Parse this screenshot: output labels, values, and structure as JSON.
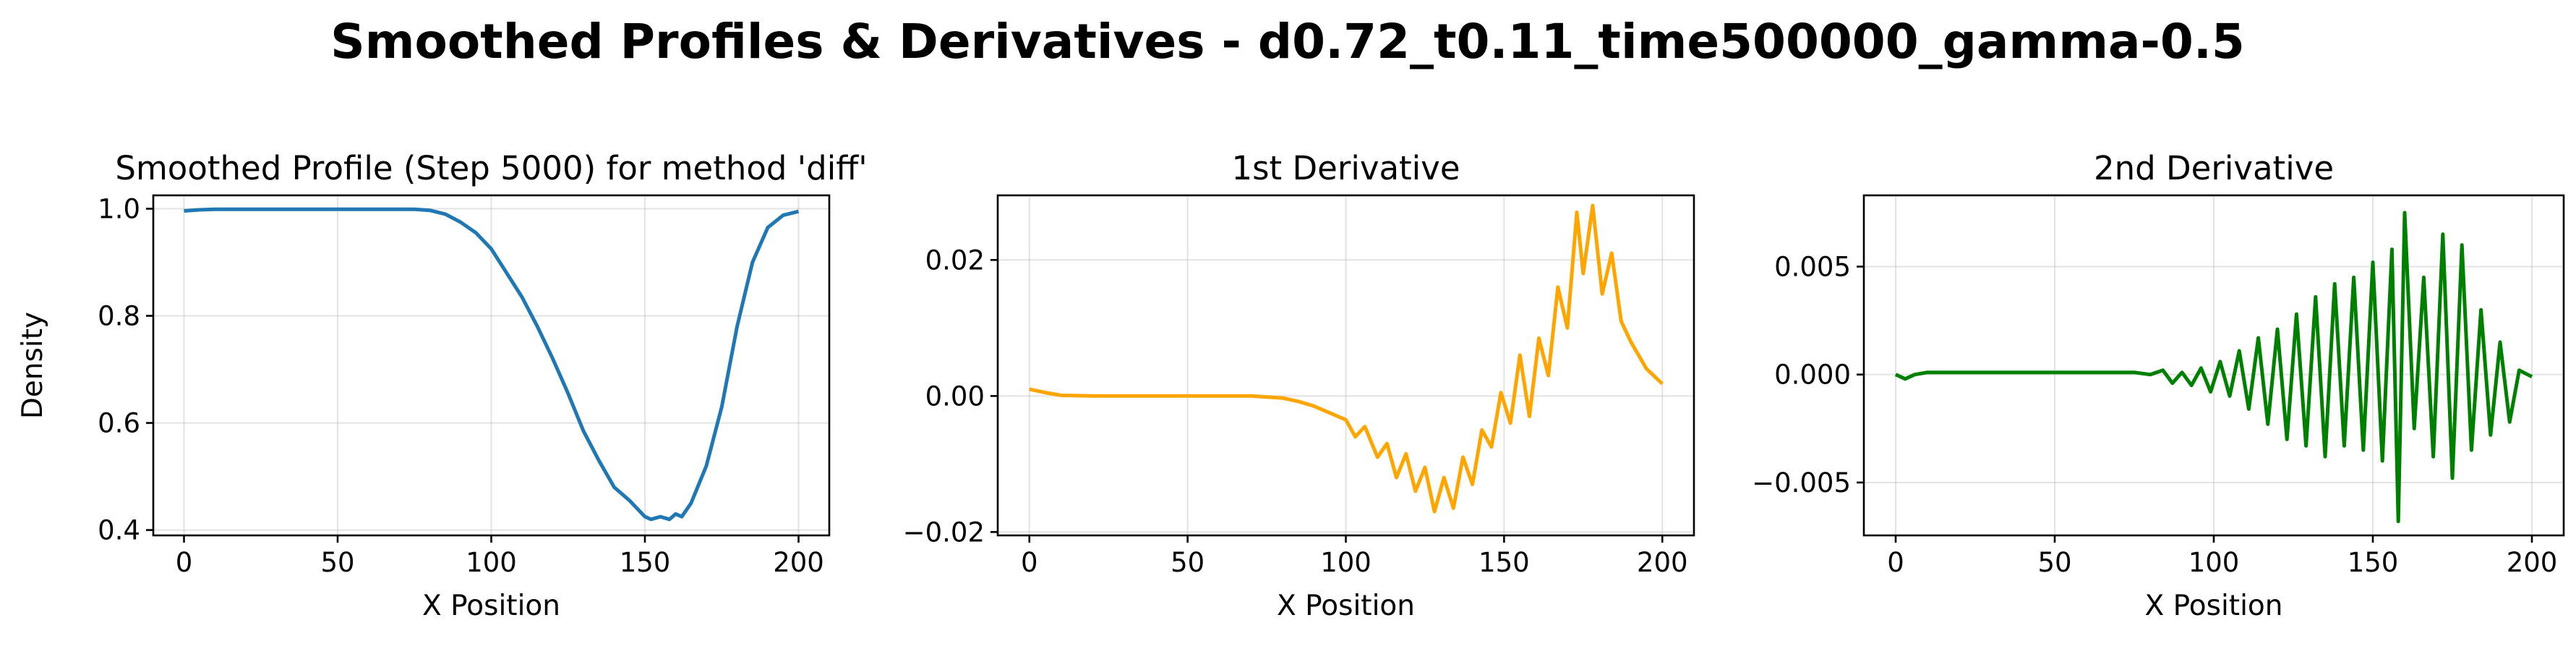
{
  "suptitle": "Smoothed Profiles & Derivatives - d0.72_t0.11_time500000_gamma-0.5",
  "chart_data": [
    {
      "type": "line",
      "title": "Smoothed Profile (Step 5000) for method 'diff'",
      "xlabel": "X Position",
      "ylabel": "Density",
      "xlim": [
        -10,
        210
      ],
      "ylim": [
        0.39,
        1.025
      ],
      "xticks": [
        0,
        50,
        100,
        150,
        200
      ],
      "xtick_labels": [
        "0",
        "50",
        "100",
        "150",
        "200"
      ],
      "yticks": [
        0.4,
        0.6,
        0.8,
        1.0
      ],
      "ytick_labels": [
        "0.4",
        "0.6",
        "0.8",
        "1.0"
      ],
      "grid": true,
      "color": "#1f77b4",
      "series": [
        {
          "x": [
            0,
            5,
            10,
            20,
            30,
            40,
            50,
            60,
            70,
            75,
            80,
            85,
            90,
            95,
            100,
            105,
            110,
            115,
            120,
            125,
            130,
            135,
            140,
            145,
            150,
            152,
            155,
            158,
            160,
            162,
            165,
            170,
            175,
            180,
            185,
            190,
            195,
            200
          ],
          "y": [
            0.996,
            0.998,
            0.999,
            0.999,
            0.999,
            0.999,
            0.999,
            0.999,
            0.999,
            0.999,
            0.997,
            0.99,
            0.975,
            0.955,
            0.925,
            0.88,
            0.835,
            0.78,
            0.72,
            0.655,
            0.585,
            0.53,
            0.48,
            0.455,
            0.425,
            0.42,
            0.425,
            0.42,
            0.43,
            0.425,
            0.45,
            0.52,
            0.63,
            0.78,
            0.9,
            0.965,
            0.988,
            0.995
          ]
        }
      ]
    },
    {
      "type": "line",
      "title": "1st Derivative",
      "xlabel": "X Position",
      "ylabel": "",
      "xlim": [
        -10,
        210
      ],
      "ylim": [
        -0.0205,
        0.0295
      ],
      "xticks": [
        0,
        50,
        100,
        150,
        200
      ],
      "xtick_labels": [
        "0",
        "50",
        "100",
        "150",
        "200"
      ],
      "yticks": [
        -0.02,
        0.0,
        0.02
      ],
      "ytick_labels": [
        "−0.02",
        "0.00",
        "0.02"
      ],
      "grid": true,
      "color": "#ffa500",
      "series": [
        {
          "x": [
            0,
            5,
            10,
            20,
            40,
            60,
            70,
            80,
            85,
            90,
            95,
            100,
            103,
            106,
            110,
            113,
            116,
            119,
            122,
            125,
            128,
            131,
            134,
            137,
            140,
            143,
            146,
            149,
            152,
            155,
            158,
            161,
            164,
            167,
            170,
            173,
            175,
            178,
            181,
            184,
            187,
            190,
            195,
            200
          ],
          "y": [
            0.001,
            0.0005,
            0.0001,
            0.0,
            0.0,
            0.0,
            0.0,
            -0.0003,
            -0.0008,
            -0.0015,
            -0.0025,
            -0.0035,
            -0.006,
            -0.0045,
            -0.009,
            -0.007,
            -0.012,
            -0.0085,
            -0.014,
            -0.0105,
            -0.017,
            -0.012,
            -0.0165,
            -0.009,
            -0.013,
            -0.005,
            -0.0075,
            0.0005,
            -0.004,
            0.006,
            -0.003,
            0.0085,
            0.003,
            0.016,
            0.01,
            0.027,
            0.018,
            0.028,
            0.015,
            0.021,
            0.011,
            0.008,
            0.004,
            0.0018
          ]
        }
      ]
    },
    {
      "type": "line",
      "title": "2nd Derivative",
      "xlabel": "X Position",
      "ylabel": "",
      "xlim": [
        -10,
        210
      ],
      "ylim": [
        -0.00745,
        0.0083
      ],
      "xticks": [
        0,
        50,
        100,
        150,
        200
      ],
      "xtick_labels": [
        "0",
        "50",
        "100",
        "150",
        "200"
      ],
      "yticks": [
        -0.005,
        0.0,
        0.005
      ],
      "ytick_labels": [
        "−0.005",
        "0.000",
        "0.005"
      ],
      "grid": true,
      "color": "#008000",
      "series": [
        {
          "x": [
            0,
            3,
            6,
            10,
            20,
            40,
            60,
            75,
            80,
            84,
            87,
            90,
            93,
            96,
            99,
            102,
            105,
            108,
            111,
            114,
            117,
            120,
            123,
            126,
            129,
            132,
            135,
            138,
            141,
            144,
            147,
            150,
            153,
            156,
            158,
            160,
            163,
            166,
            169,
            172,
            175,
            178,
            181,
            184,
            187,
            190,
            193,
            196,
            200
          ],
          "y": [
            0.0,
            -0.0002,
            0.0,
            0.0001,
            0.0001,
            0.0001,
            0.0001,
            0.0001,
            0.0,
            0.0002,
            -0.0004,
            0.0001,
            -0.0005,
            0.0003,
            -0.0008,
            0.0006,
            -0.001,
            0.0011,
            -0.0016,
            0.0017,
            -0.0023,
            0.0021,
            -0.003,
            0.0028,
            -0.0033,
            0.0036,
            -0.0038,
            0.0042,
            -0.0033,
            0.0045,
            -0.0035,
            0.0052,
            -0.004,
            0.0058,
            -0.0068,
            0.0075,
            -0.0025,
            0.0045,
            -0.0038,
            0.0065,
            -0.0048,
            0.006,
            -0.0035,
            0.003,
            -0.0028,
            0.0015,
            -0.0022,
            0.0002,
            -0.0001
          ]
        }
      ]
    }
  ]
}
